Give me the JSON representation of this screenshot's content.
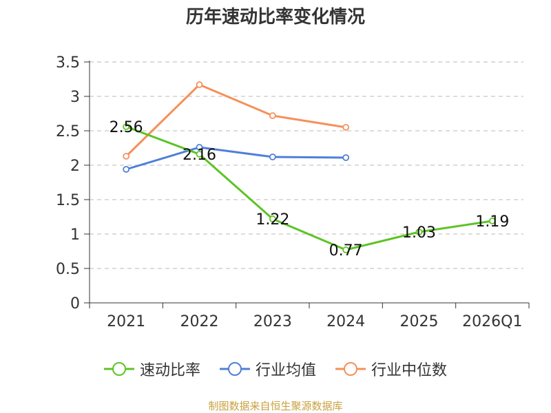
{
  "chart_data": {
    "type": "line",
    "title": "历年速动比率变化情况",
    "categories": [
      "2021",
      "2022",
      "2023",
      "2024",
      "2025",
      "2026Q1"
    ],
    "ylim": [
      0,
      3.5
    ],
    "yticks": [
      "0",
      "0.5",
      "1",
      "1.5",
      "2",
      "2.5",
      "3",
      "3.5"
    ],
    "grid": true,
    "legend_position": "bottom",
    "series": [
      {
        "name": "速动比率",
        "color": "#5cc424",
        "values": [
          2.56,
          2.16,
          1.22,
          0.77,
          1.03,
          1.19
        ],
        "labels": [
          "2.56",
          "2.16",
          "1.22",
          "0.77",
          "1.03",
          "1.19"
        ]
      },
      {
        "name": "行业均值",
        "color": "#4f7fd9",
        "values": [
          1.94,
          2.26,
          2.12,
          2.11,
          null,
          null
        ]
      },
      {
        "name": "行业中位数",
        "color": "#f5905a",
        "values": [
          2.13,
          3.17,
          2.72,
          2.55,
          null,
          null
        ]
      }
    ]
  },
  "source": "制图数据来自恒生聚源数据库"
}
